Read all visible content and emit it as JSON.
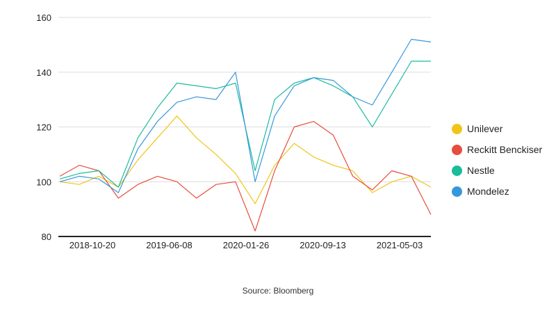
{
  "chart_data": {
    "type": "line",
    "title": "",
    "xlabel": "",
    "ylabel": "",
    "ylim": [
      80,
      160
    ],
    "yticks": [
      80,
      100,
      120,
      140,
      160
    ],
    "xticks": [
      "2018-10-20",
      "2019-06-08",
      "2020-01-26",
      "2020-09-13",
      "2021-05-03"
    ],
    "x": [
      "2018-08",
      "2018-10",
      "2018-12",
      "2019-02",
      "2019-04",
      "2019-06",
      "2019-08",
      "2019-10",
      "2019-12",
      "2020-02",
      "2020-03",
      "2020-04",
      "2020-06",
      "2020-08",
      "2020-10",
      "2020-12",
      "2021-02",
      "2021-04",
      "2021-06",
      "2021-07"
    ],
    "grid": true,
    "legend_position": "right",
    "series": [
      {
        "name": "Unilever",
        "color": "#f0c419",
        "values": [
          100,
          99,
          102,
          98,
          108,
          116,
          124,
          116,
          110,
          103,
          92,
          106,
          114,
          109,
          106,
          104,
          96,
          100,
          102,
          98
        ]
      },
      {
        "name": "Reckitt Benckiser",
        "color": "#e74c3c",
        "values": [
          102,
          106,
          104,
          94,
          99,
          102,
          100,
          94,
          99,
          100,
          82,
          104,
          120,
          122,
          117,
          102,
          97,
          104,
          102,
          88
        ]
      },
      {
        "name": "Nestle",
        "color": "#1abc9c",
        "values": [
          101,
          103,
          104,
          98,
          116,
          127,
          136,
          135,
          134,
          136,
          104,
          130,
          136,
          138,
          135,
          131,
          120,
          132,
          144,
          144
        ]
      },
      {
        "name": "Mondelez",
        "color": "#3498db",
        "values": [
          100,
          102,
          101,
          96,
          112,
          122,
          129,
          131,
          130,
          140,
          100,
          124,
          135,
          138,
          137,
          131,
          128,
          140,
          152,
          151
        ]
      }
    ],
    "source": "Source: Bloomberg"
  }
}
